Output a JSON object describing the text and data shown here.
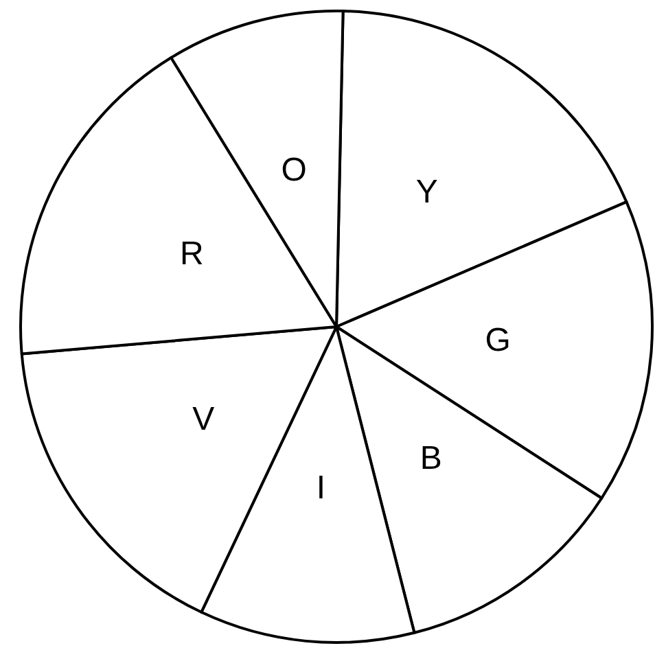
{
  "chart_data": {
    "type": "pie",
    "categories": [
      "Y",
      "G",
      "B",
      "I",
      "V",
      "R",
      "O"
    ],
    "values": [
      18.2,
      15.6,
      11.9,
      11.0,
      16.6,
      17.6,
      9.1
    ],
    "colors": [
      "#ffffff",
      "#ffffff",
      "#ffffff",
      "#ffffff",
      "#ffffff",
      "#ffffff",
      "#ffffff"
    ]
  }
}
